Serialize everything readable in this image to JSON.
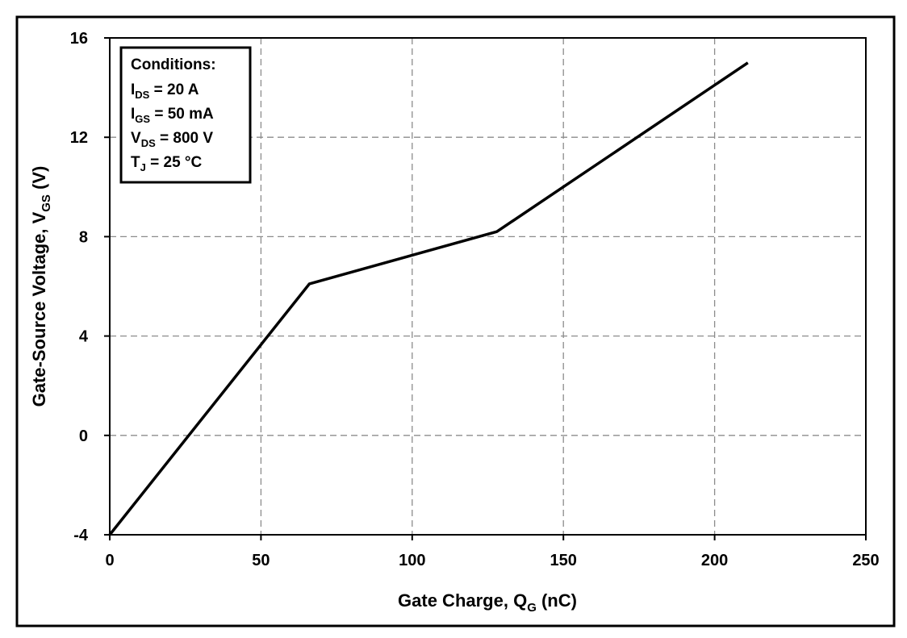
{
  "chart_data": {
    "type": "line",
    "title": "",
    "xlabel": {
      "main": "Gate Charge, Q",
      "sub": "G",
      "suffix": " (nC)"
    },
    "ylabel": {
      "main": "Gate-Source Voltage, V",
      "sub": "GS",
      "suffix": " (V)"
    },
    "xlim": [
      0,
      250
    ],
    "ylim": [
      -4,
      16
    ],
    "x_ticks": [
      0,
      50,
      100,
      150,
      200,
      250
    ],
    "x_tick_labels": [
      "0",
      "50",
      "100",
      "150",
      "200",
      "250"
    ],
    "y_ticks": [
      -4,
      0,
      4,
      8,
      12,
      16
    ],
    "y_tick_labels": [
      "-4",
      "0",
      "4",
      "8",
      "12",
      "16"
    ],
    "grid": true,
    "series": [
      {
        "color": "#000000",
        "x": [
          0,
          66,
          128,
          211
        ],
        "y": [
          -4,
          6.1,
          8.2,
          15
        ]
      }
    ],
    "annotation": {
      "placement": "top-left",
      "title": "Conditions:",
      "lines": [
        {
          "main": "I",
          "sub": "DS",
          "suffix": " = 20 A"
        },
        {
          "main": "I",
          "sub": "GS",
          "suffix": " = 50 mA"
        },
        {
          "main": "V",
          "sub": "DS",
          "suffix": " = 800 V"
        },
        {
          "main": "T",
          "sub": "J",
          "suffix": " = 25 °C"
        }
      ]
    }
  }
}
